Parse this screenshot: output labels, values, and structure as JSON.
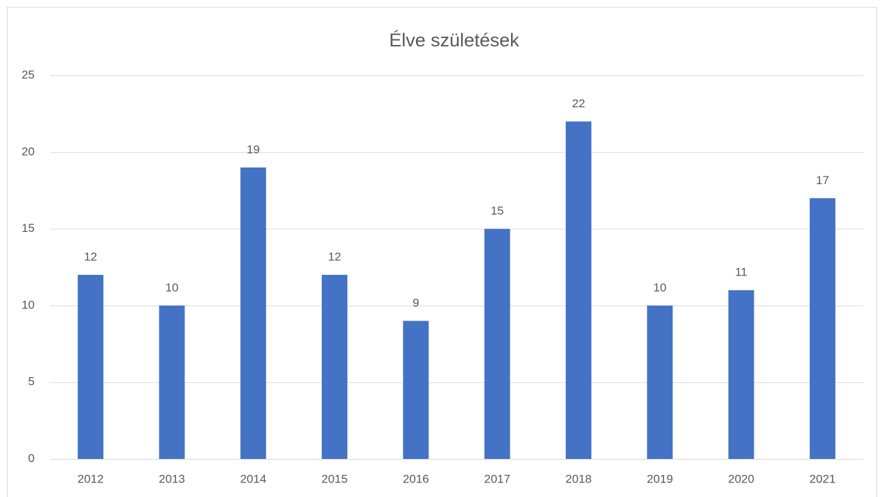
{
  "chart_data": {
    "type": "bar",
    "title": "Élve születések",
    "categories": [
      "2012",
      "2013",
      "2014",
      "2015",
      "2016",
      "2017",
      "2018",
      "2019",
      "2020",
      "2021"
    ],
    "values": [
      12,
      10,
      19,
      12,
      9,
      15,
      22,
      10,
      11,
      17
    ],
    "color": "#4472c4",
    "ylim": [
      0,
      25
    ],
    "yticks": [
      0,
      5,
      10,
      15,
      20,
      25
    ],
    "grid": true
  }
}
